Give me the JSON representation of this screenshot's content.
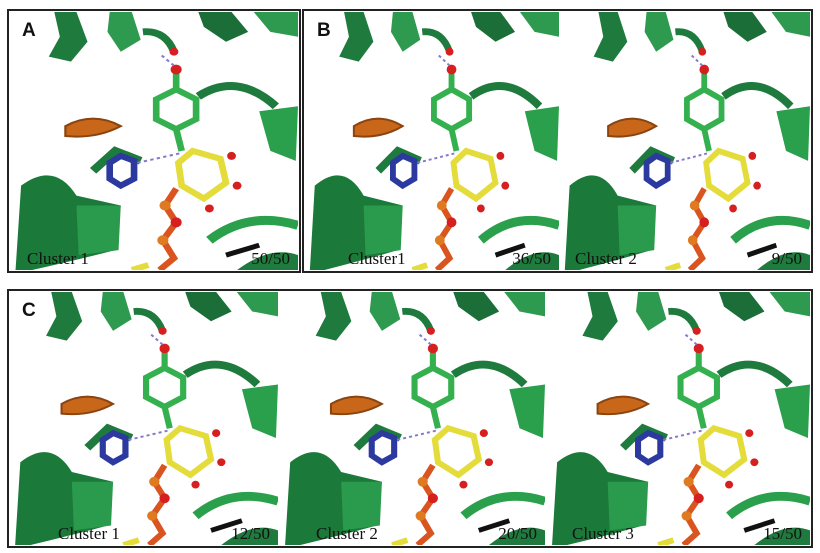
{
  "panels": [
    {
      "letter": "A",
      "images": [
        {
          "label": "Cluster 1",
          "count": "50/50"
        }
      ]
    },
    {
      "letter": "B",
      "images": [
        {
          "label": "Cluster1",
          "count": "36/50"
        },
        {
          "label": "Cluster 2",
          "count": "9/50"
        }
      ]
    },
    {
      "letter": "C",
      "images": [
        {
          "label": "Cluster 1",
          "count": "12/50"
        },
        {
          "label": "Cluster 2",
          "count": "20/50"
        },
        {
          "label": "Cluster 3",
          "count": "15/50"
        }
      ]
    }
  ]
}
